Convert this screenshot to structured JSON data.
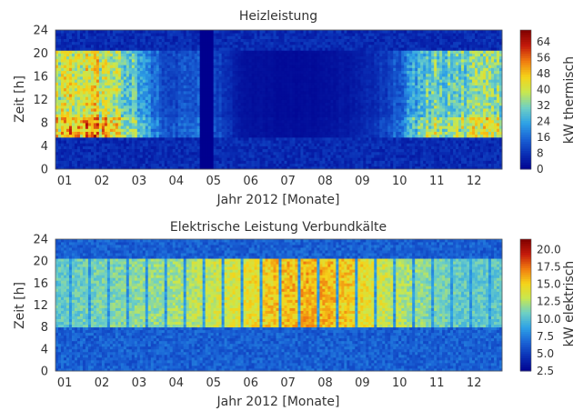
{
  "chart_data": [
    {
      "type": "heatmap",
      "title": "Heizleistung",
      "xlabel": "Jahr 2012 [Monate]",
      "ylabel": "Zeit [h]",
      "x_ticks": [
        "01",
        "02",
        "03",
        "04",
        "05",
        "06",
        "07",
        "08",
        "09",
        "10",
        "11",
        "12"
      ],
      "y_ticks": [
        "0",
        "4",
        "8",
        "12",
        "16",
        "20",
        "24"
      ],
      "xlim": [
        0,
        12
      ],
      "ylim": [
        0,
        24
      ],
      "colorbar": {
        "label": "kW thermisch",
        "range": [
          0,
          70
        ],
        "ticks": [
          "0",
          "8",
          "16",
          "24",
          "32",
          "40",
          "48",
          "56",
          "64"
        ],
        "tick_values": [
          0,
          8,
          16,
          24,
          32,
          40,
          48,
          56,
          64
        ]
      },
      "colormap": [
        "#00008f",
        "#0a2fb5",
        "#1a64d6",
        "#2fa3e6",
        "#6fd0c4",
        "#c8e84f",
        "#f5d319",
        "#f07c10",
        "#c41a0b",
        "#800000"
      ],
      "pattern": {
        "active_hours": [
          5.5,
          20.5
        ],
        "heating_months_mean_kW": [
          38,
          42,
          30,
          10,
          14,
          3,
          2,
          2,
          4,
          10,
          30,
          32
        ],
        "outage_month_range": [
          3.9,
          4.25
        ]
      }
    },
    {
      "type": "heatmap",
      "title": "Elektrische Leistung Verbundkälte",
      "xlabel": "Jahr 2012 [Monate]",
      "ylabel": "Zeit [h]",
      "x_ticks": [
        "01",
        "02",
        "03",
        "04",
        "05",
        "06",
        "07",
        "08",
        "09",
        "10",
        "11",
        "12"
      ],
      "y_ticks": [
        "0",
        "4",
        "8",
        "12",
        "16",
        "20",
        "24"
      ],
      "xlim": [
        0,
        12
      ],
      "ylim": [
        0,
        24
      ],
      "colorbar": {
        "label": "kW elektrisch",
        "range": [
          2.5,
          21.5
        ],
        "ticks": [
          "2.5",
          "5.0",
          "7.5",
          "10.0",
          "12.5",
          "15.0",
          "17.5",
          "20.0"
        ],
        "tick_values": [
          2.5,
          5.0,
          7.5,
          10.0,
          12.5,
          15.0,
          17.5,
          20.0
        ]
      },
      "colormap": [
        "#00008f",
        "#0a2fb5",
        "#1a64d6",
        "#2fa3e6",
        "#6fd0c4",
        "#c8e84f",
        "#f5d319",
        "#f07c10",
        "#c41a0b",
        "#800000"
      ],
      "pattern": {
        "active_hours": [
          8,
          20.5
        ],
        "day_mean_kW_by_month": [
          10.5,
          11,
          11.5,
          12,
          13,
          14,
          15.5,
          16,
          15,
          13,
          11.5,
          10.5
        ],
        "night_kW": 6.5
      }
    }
  ]
}
